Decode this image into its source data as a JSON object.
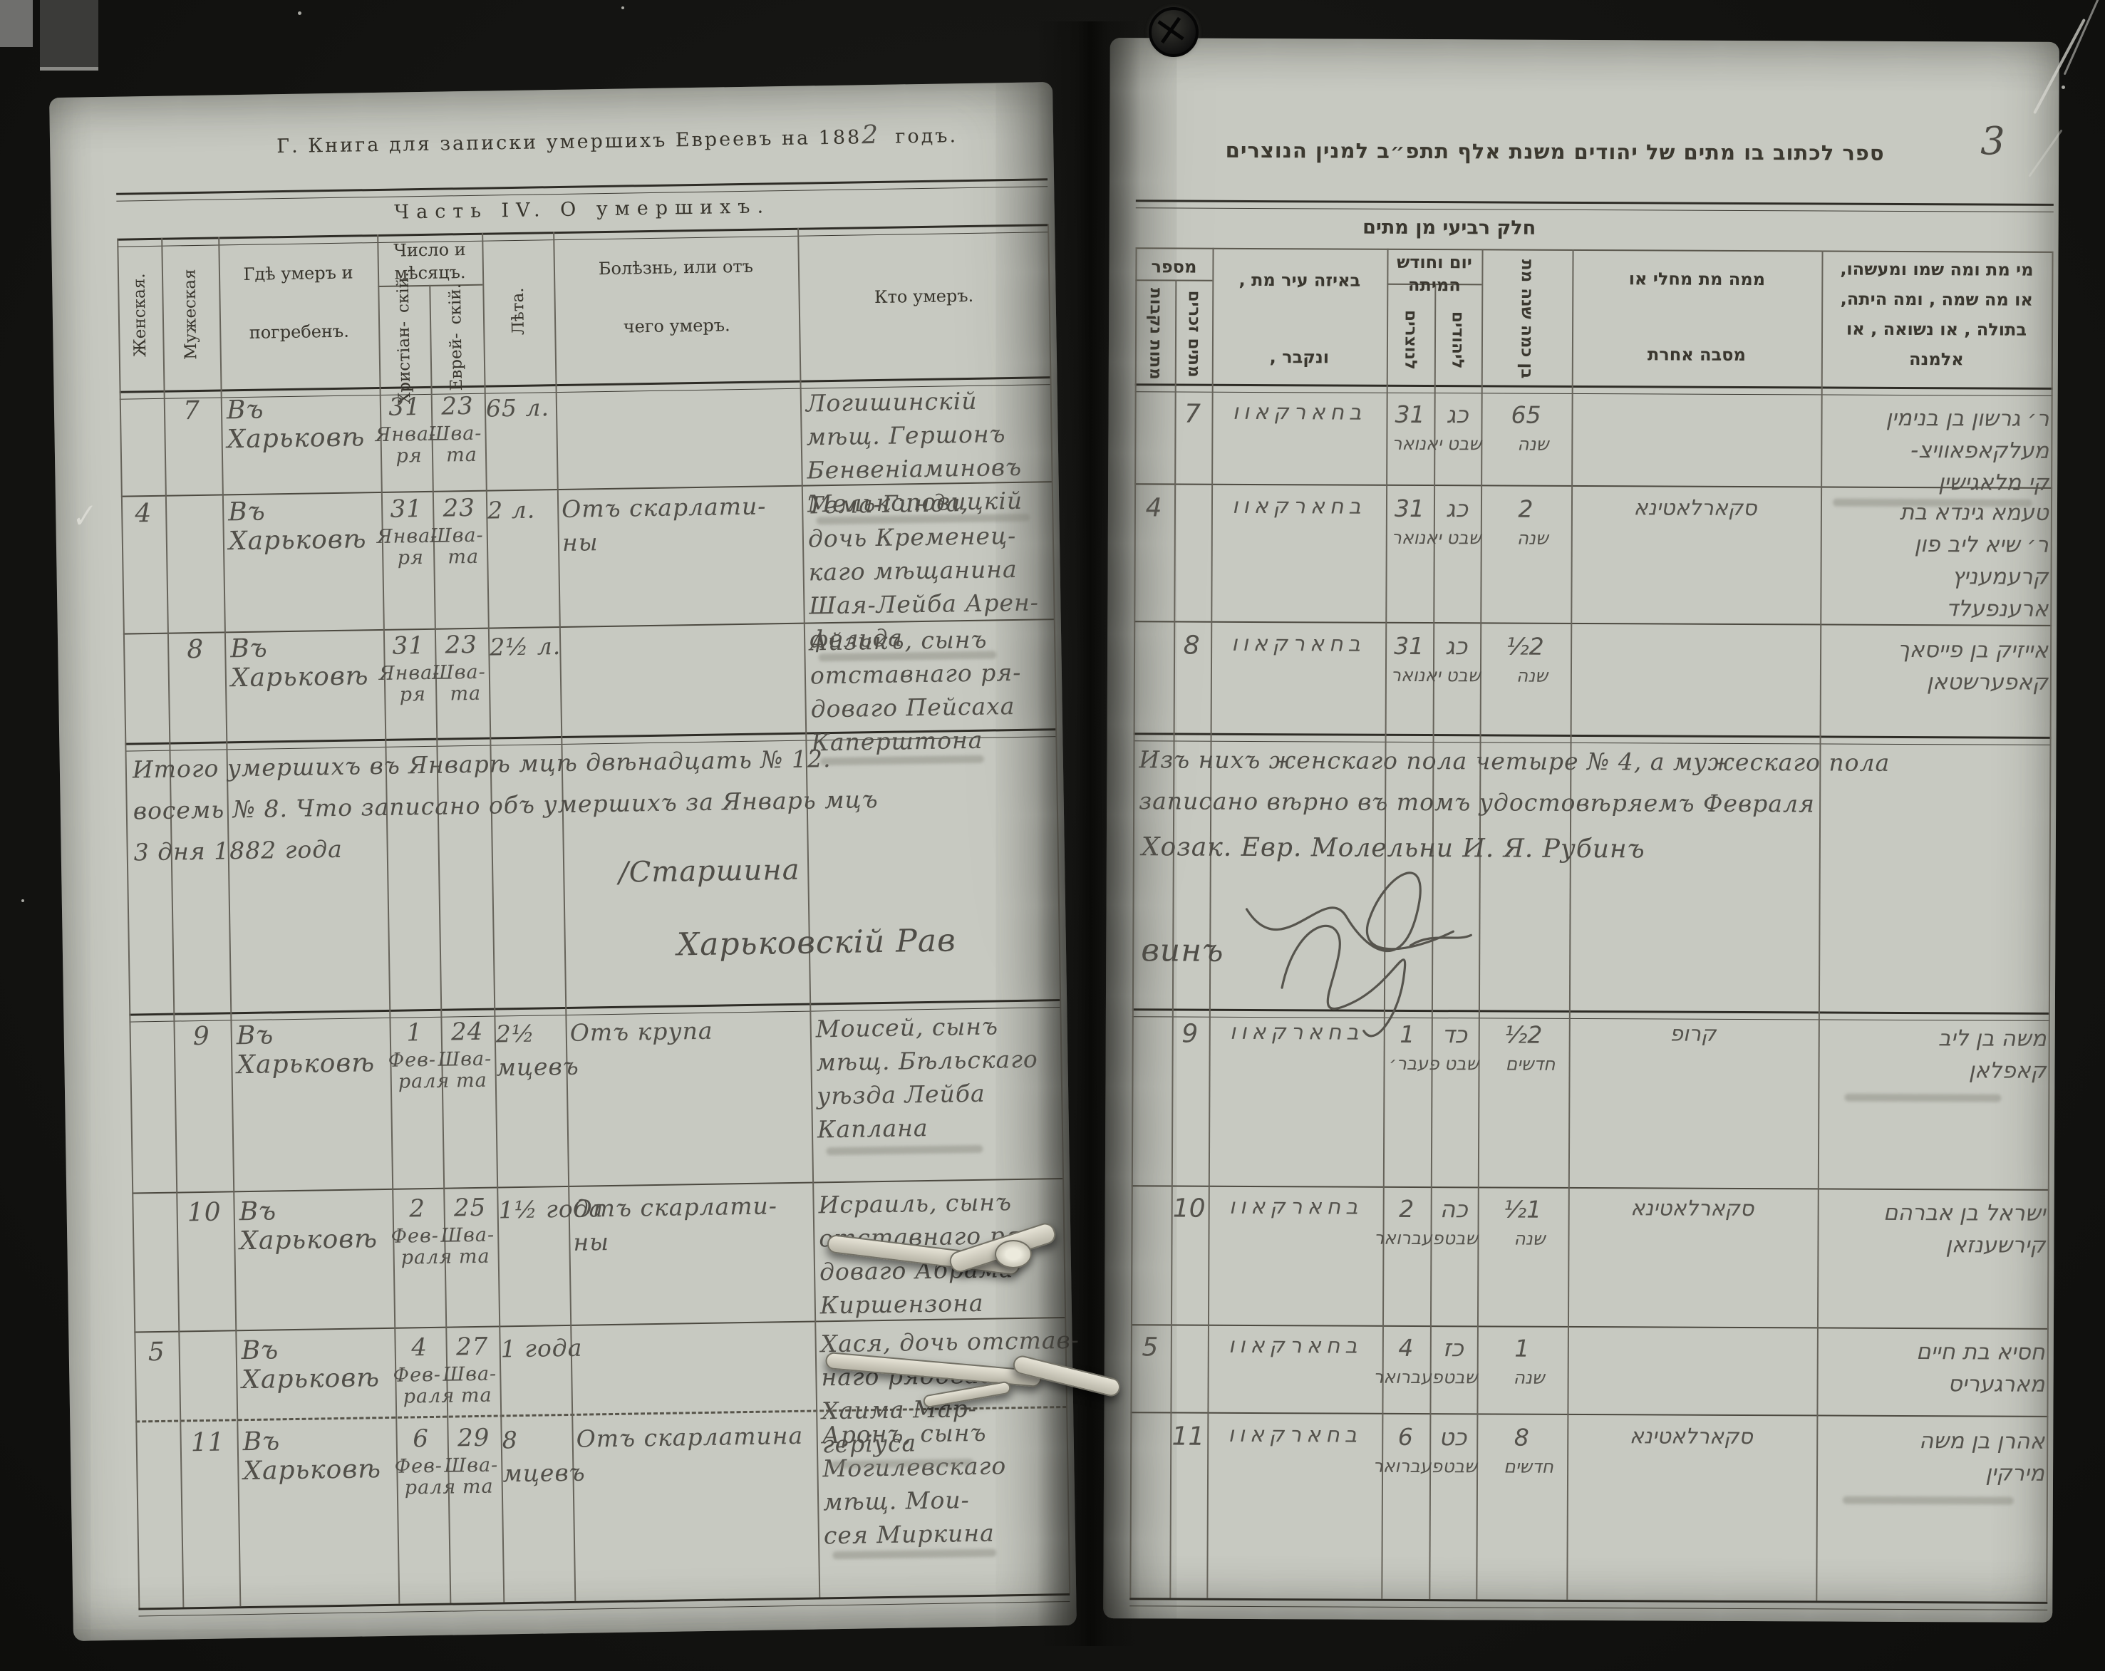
{
  "scan": {
    "page_number_hw": "3",
    "check_mark": "✓"
  },
  "page_left": {
    "header_prefix": "Г. Книга для записки умершихъ Евреевъ на 188",
    "header_year_hw": "2",
    "header_suffix": "годъ.",
    "table_title": "Часть IV. О умершихъ.",
    "columns": {
      "female": "Женская.",
      "male": "Мужеская",
      "place": [
        "Гдѣ умеръ и",
        "погребенъ."
      ],
      "date_group": [
        "Число и",
        "мѣсяцъ."
      ],
      "date_christian": [
        "Христіан-",
        "скій."
      ],
      "date_jewish": [
        "Еврей-",
        "скій."
      ],
      "age": "Лѣта.",
      "cause": [
        "Болѣзнь, или отъ",
        "чего умеръ."
      ],
      "who": "Кто умеръ."
    },
    "rows": [
      {
        "num_female": "",
        "num_male": "7",
        "place": "Въ Харьковѣ",
        "date_christian": [
          "31",
          "Янва-",
          "ря"
        ],
        "date_jewish": [
          "23",
          "Шва-",
          "та"
        ],
        "age": [
          "65 л."
        ],
        "cause": [],
        "who": [
          "Логишинскій",
          "мѣщ. Гершонъ",
          "Бенвеніаминовъ",
          "Мелькоповицкій"
        ]
      },
      {
        "num_female": "4",
        "num_male": "",
        "place": "Въ Харьковѣ",
        "date_christian": [
          "31",
          "Янва-",
          "ря"
        ],
        "date_jewish": [
          "23",
          "Шва-",
          "та"
        ],
        "age": [
          "2 л."
        ],
        "cause": [
          "Отъ скарлати-",
          "ны"
        ],
        "who": [
          "Тема-Гинда,",
          "дочь Кременец-",
          "каго мѣщанина",
          "Шая-Лейба Арен-",
          "фельда"
        ]
      },
      {
        "num_female": "",
        "num_male": "8",
        "place": "Въ Харьковѣ",
        "date_christian": [
          "31",
          "Янва-",
          "ря"
        ],
        "date_jewish": [
          "23",
          "Шва-",
          "та"
        ],
        "age": [
          "2½ л."
        ],
        "cause": [],
        "who": [
          "Айзикъ, сынъ",
          "отставнаго ря-",
          "доваго Пейсаха",
          "Каперштона"
        ]
      },
      {
        "num_female": "",
        "num_male": "9",
        "place": "Въ Харьковѣ",
        "date_christian": [
          "1",
          "Фев-",
          "раля"
        ],
        "date_jewish": [
          "24",
          "Шва-",
          "та"
        ],
        "age": [
          "2½",
          "мцевъ"
        ],
        "cause": [
          "Отъ крупа"
        ],
        "who": [
          "Моисей, сынъ",
          "мѣщ. Бѣльскаго",
          "уѣзда Лейба",
          "Каплана"
        ]
      },
      {
        "num_female": "",
        "num_male": "10",
        "place": "Въ Харьковѣ",
        "date_christian": [
          "2",
          "Фев-",
          "раля"
        ],
        "date_jewish": [
          "25",
          "Шва-",
          "та"
        ],
        "age": [
          "1½ года"
        ],
        "cause": [
          "Отъ скарлати-",
          "ны"
        ],
        "who": [
          "Исраиль, сынъ",
          "отставнаго ря-",
          "доваго Абрама",
          "Киршензона"
        ]
      },
      {
        "num_female": "5",
        "num_male": "",
        "place": "Въ Харьковѣ",
        "date_christian": [
          "4",
          "Фев-",
          "раля"
        ],
        "date_jewish": [
          "27",
          "Шва-",
          "та"
        ],
        "age": [
          "1 года"
        ],
        "cause": [],
        "who": [
          "Хася, дочь отстав-",
          "наго рядоваго",
          "Хаима Мар-",
          "геріуса"
        ]
      },
      {
        "num_female": "",
        "num_male": "11",
        "place": "Въ Харьковѣ",
        "date_christian": [
          "6",
          "Фев-",
          "раля"
        ],
        "date_jewish": [
          "29",
          "Шва-",
          "та"
        ],
        "age": [
          "8",
          "мцевъ"
        ],
        "cause": [
          "Отъ скарлатина"
        ],
        "who": [
          "Аронъ, сынъ",
          "Могилевскаго",
          "мѣщ. Мои-",
          "сея Миркина"
        ]
      }
    ],
    "summary": {
      "line1": "Итого умершихъ въ Январѣ мцѣ двѣнадцать № 12.",
      "line2": "восемь № 8. Что записано объ умершихъ за Январь мцъ",
      "line3": "3 дня 1882 года",
      "signature": "/Старшина",
      "rabbi_title": "Харьковскій Рав"
    }
  },
  "page_right": {
    "header_title": "ספר לכתוב בו מתים של יהודים משנת אלף תתפ״ב למנין הנוצרים",
    "table_title": "חלק רביעי מן מתים",
    "columns": {
      "number_group": "מספר",
      "males": "מתים זכרים",
      "females": "מתות נקבות",
      "place": [
        "באיזה עיר מת ,",
        "ונקבר ,"
      ],
      "date_group": [
        "יום וחודש",
        "המיתה"
      ],
      "date_christian": "לנוצרים",
      "date_jewish": "ליהודים",
      "age": "בן כמה שנה מת",
      "cause": [
        "ממה מת מחלי או",
        "מסבה אחרת"
      ],
      "who": [
        "מי מת ומה שמו ומעשהו,",
        "או מה שמה , ומה היתה,",
        "בתולה , או נשואה , או",
        "אלמנה"
      ]
    },
    "rows": [
      {
        "num_female": "",
        "num_male": "7",
        "place": "בחארקאוו",
        "date_christian": [
          "31",
          "יאנואר"
        ],
        "date_jewish": [
          "כג",
          "שבט"
        ],
        "age": [
          "65",
          "שנה"
        ],
        "cause": [],
        "who": [
          "ר׳ גרשון בן בנימין",
          "מעלקאפאוויצ-",
          "קי מלאגישין"
        ]
      },
      {
        "num_female": "4",
        "num_male": "",
        "place": "בחארקאוו",
        "date_christian": [
          "31",
          "יאנואר"
        ],
        "date_jewish": [
          "כג",
          "שבט"
        ],
        "age": [
          "2",
          "שנה"
        ],
        "cause": [
          "סקארלאטינא"
        ],
        "who": [
          "טעמא גינדא בת",
          "ר׳ שיא ליב פון",
          "קרעמעניץ",
          "ארענפעלד"
        ]
      },
      {
        "num_female": "",
        "num_male": "8",
        "place": "בחארקאוו",
        "date_christian": [
          "31",
          "יאנואר"
        ],
        "date_jewish": [
          "כג",
          "שבט"
        ],
        "age": [
          "2½",
          "שנה"
        ],
        "cause": [],
        "who": [
          "אייזיק בן פייסאך",
          "קאפערשטאן"
        ]
      },
      {
        "num_female": "",
        "num_male": "9",
        "place": "בחארקאוו",
        "date_christian": [
          "1",
          "פעבר׳"
        ],
        "date_jewish": [
          "כד",
          "שבט"
        ],
        "age": [
          "2½",
          "חדשים"
        ],
        "cause": [
          "קרופ"
        ],
        "who": [
          "משה בן ליב",
          "קאפלאן"
        ]
      },
      {
        "num_female": "",
        "num_male": "10",
        "place": "בחארקאוו",
        "date_christian": [
          "2",
          "פעברואר"
        ],
        "date_jewish": [
          "כה",
          "שבט"
        ],
        "age": [
          "1½",
          "שנה"
        ],
        "cause": [
          "סקארלאטינא"
        ],
        "who": [
          "ישראל בן אברהם",
          "קירשענזאן"
        ]
      },
      {
        "num_female": "5",
        "num_male": "",
        "place": "בחארקאוו",
        "date_christian": [
          "4",
          "פעברואר"
        ],
        "date_jewish": [
          "כז",
          "שבט"
        ],
        "age": [
          "1",
          "שנה"
        ],
        "cause": [],
        "who": [
          "חסיא בת חיים",
          "מארגעריס"
        ]
      },
      {
        "num_female": "",
        "num_male": "11",
        "place": "בחארקאוו",
        "date_christian": [
          "6",
          "פעברואר"
        ],
        "date_jewish": [
          "כט",
          "שבט"
        ],
        "age": [
          "8",
          "חדשים"
        ],
        "cause": [
          "סקארלאטינא"
        ],
        "who": [
          "אהרן בן משה",
          "מירקין"
        ]
      }
    ],
    "summary": {
      "line1": "Изъ нихъ женскаго пола четыре № 4, а мужескаго пола",
      "line2": "записано вѣрно въ томъ удостовѣряемъ Февраля",
      "signature": "Хозак. Евр. Молельни И. Я. Рубинъ",
      "rabbi_cont": "винъ"
    }
  }
}
